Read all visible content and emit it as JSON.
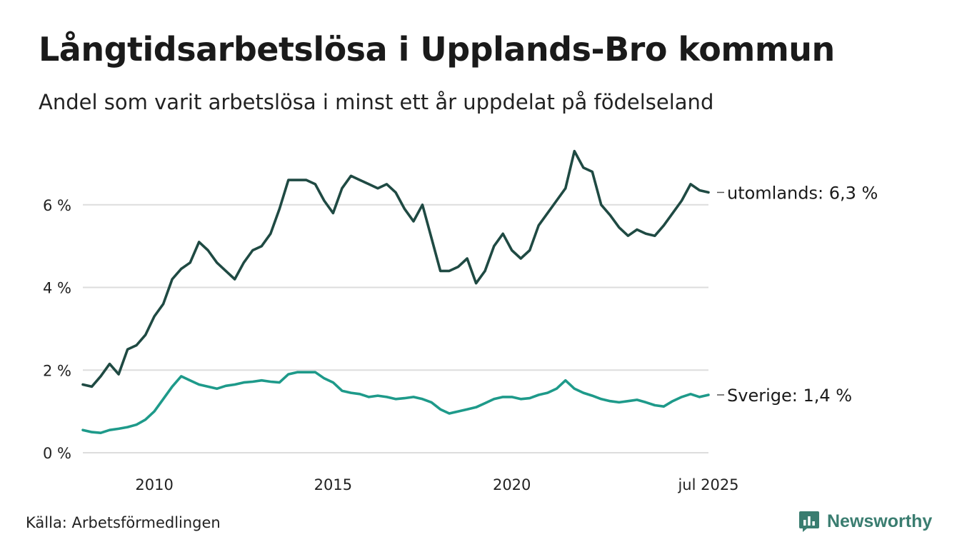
{
  "title": "Långtidsarbetslösa i Upplands-Bro kommun",
  "subtitle": "Andel som varit arbetslösa i minst ett år uppdelat på födelseland",
  "source": "Källa: Arbetsförmedlingen",
  "brand": {
    "name": "Newsworthy",
    "icon": "newsworthy-logo-icon",
    "color": "#3a7d70"
  },
  "chart_data": {
    "type": "line",
    "x_start": "2008-01",
    "x_end": "2025-07",
    "ylim": [
      0,
      7.5
    ],
    "y_ticks": [
      {
        "value": 0,
        "label": "0 %"
      },
      {
        "value": 2,
        "label": "2 %"
      },
      {
        "value": 4,
        "label": "4 %"
      },
      {
        "value": 6,
        "label": "6 %"
      }
    ],
    "x_ticks": [
      {
        "value": "2010-01",
        "label": "2010"
      },
      {
        "value": "2015-01",
        "label": "2015"
      },
      {
        "value": "2020-01",
        "label": "2020"
      },
      {
        "value": "2025-07",
        "label": "jul 2025"
      }
    ],
    "grid": true,
    "legend": "end-labels",
    "series": [
      {
        "name": "utomlands",
        "end_label": "utomlands: 6,3 %",
        "color": "#1f4a43",
        "points": [
          [
            "2008-01",
            1.65
          ],
          [
            "2008-04",
            1.6
          ],
          [
            "2008-07",
            1.85
          ],
          [
            "2008-10",
            2.15
          ],
          [
            "2009-01",
            1.9
          ],
          [
            "2009-04",
            2.5
          ],
          [
            "2009-07",
            2.6
          ],
          [
            "2009-10",
            2.85
          ],
          [
            "2010-01",
            3.3
          ],
          [
            "2010-04",
            3.6
          ],
          [
            "2010-07",
            4.2
          ],
          [
            "2010-10",
            4.45
          ],
          [
            "2011-01",
            4.6
          ],
          [
            "2011-04",
            5.1
          ],
          [
            "2011-07",
            4.9
          ],
          [
            "2011-10",
            4.6
          ],
          [
            "2012-01",
            4.4
          ],
          [
            "2012-04",
            4.2
          ],
          [
            "2012-07",
            4.6
          ],
          [
            "2012-10",
            4.9
          ],
          [
            "2013-01",
            5.0
          ],
          [
            "2013-04",
            5.3
          ],
          [
            "2013-07",
            5.9
          ],
          [
            "2013-10",
            6.6
          ],
          [
            "2014-01",
            6.6
          ],
          [
            "2014-04",
            6.6
          ],
          [
            "2014-07",
            6.5
          ],
          [
            "2014-10",
            6.1
          ],
          [
            "2015-01",
            5.8
          ],
          [
            "2015-04",
            6.4
          ],
          [
            "2015-07",
            6.7
          ],
          [
            "2015-10",
            6.6
          ],
          [
            "2016-01",
            6.5
          ],
          [
            "2016-04",
            6.4
          ],
          [
            "2016-07",
            6.5
          ],
          [
            "2016-10",
            6.3
          ],
          [
            "2017-01",
            5.9
          ],
          [
            "2017-04",
            5.6
          ],
          [
            "2017-07",
            6.0
          ],
          [
            "2017-10",
            5.2
          ],
          [
            "2018-01",
            4.4
          ],
          [
            "2018-04",
            4.4
          ],
          [
            "2018-07",
            4.5
          ],
          [
            "2018-10",
            4.7
          ],
          [
            "2019-01",
            4.1
          ],
          [
            "2019-04",
            4.4
          ],
          [
            "2019-07",
            5.0
          ],
          [
            "2019-10",
            5.3
          ],
          [
            "2020-01",
            4.9
          ],
          [
            "2020-04",
            4.7
          ],
          [
            "2020-07",
            4.9
          ],
          [
            "2020-10",
            5.5
          ],
          [
            "2021-01",
            5.8
          ],
          [
            "2021-04",
            6.1
          ],
          [
            "2021-07",
            6.4
          ],
          [
            "2021-10",
            7.3
          ],
          [
            "2022-01",
            6.9
          ],
          [
            "2022-04",
            6.8
          ],
          [
            "2022-07",
            6.0
          ],
          [
            "2022-10",
            5.75
          ],
          [
            "2023-01",
            5.45
          ],
          [
            "2023-04",
            5.25
          ],
          [
            "2023-07",
            5.4
          ],
          [
            "2023-10",
            5.3
          ],
          [
            "2024-01",
            5.25
          ],
          [
            "2024-04",
            5.5
          ],
          [
            "2024-07",
            5.8
          ],
          [
            "2024-10",
            6.1
          ],
          [
            "2025-01",
            6.5
          ],
          [
            "2025-04",
            6.35
          ],
          [
            "2025-07",
            6.3
          ]
        ]
      },
      {
        "name": "Sverige",
        "end_label": "Sverige: 1,4 %",
        "color": "#1e9a8a",
        "points": [
          [
            "2008-01",
            0.55
          ],
          [
            "2008-04",
            0.5
          ],
          [
            "2008-07",
            0.48
          ],
          [
            "2008-10",
            0.55
          ],
          [
            "2009-01",
            0.58
          ],
          [
            "2009-04",
            0.62
          ],
          [
            "2009-07",
            0.68
          ],
          [
            "2009-10",
            0.8
          ],
          [
            "2010-01",
            1.0
          ],
          [
            "2010-04",
            1.3
          ],
          [
            "2010-07",
            1.6
          ],
          [
            "2010-10",
            1.85
          ],
          [
            "2011-01",
            1.75
          ],
          [
            "2011-04",
            1.65
          ],
          [
            "2011-07",
            1.6
          ],
          [
            "2011-10",
            1.55
          ],
          [
            "2012-01",
            1.62
          ],
          [
            "2012-04",
            1.65
          ],
          [
            "2012-07",
            1.7
          ],
          [
            "2012-10",
            1.72
          ],
          [
            "2013-01",
            1.75
          ],
          [
            "2013-04",
            1.72
          ],
          [
            "2013-07",
            1.7
          ],
          [
            "2013-10",
            1.9
          ],
          [
            "2014-01",
            1.95
          ],
          [
            "2014-04",
            1.95
          ],
          [
            "2014-07",
            1.95
          ],
          [
            "2014-10",
            1.8
          ],
          [
            "2015-01",
            1.7
          ],
          [
            "2015-04",
            1.5
          ],
          [
            "2015-07",
            1.45
          ],
          [
            "2015-10",
            1.42
          ],
          [
            "2016-01",
            1.35
          ],
          [
            "2016-04",
            1.38
          ],
          [
            "2016-07",
            1.35
          ],
          [
            "2016-10",
            1.3
          ],
          [
            "2017-01",
            1.32
          ],
          [
            "2017-04",
            1.35
          ],
          [
            "2017-07",
            1.3
          ],
          [
            "2017-10",
            1.22
          ],
          [
            "2018-01",
            1.05
          ],
          [
            "2018-04",
            0.95
          ],
          [
            "2018-07",
            1.0
          ],
          [
            "2018-10",
            1.05
          ],
          [
            "2019-01",
            1.1
          ],
          [
            "2019-04",
            1.2
          ],
          [
            "2019-07",
            1.3
          ],
          [
            "2019-10",
            1.35
          ],
          [
            "2020-01",
            1.35
          ],
          [
            "2020-04",
            1.3
          ],
          [
            "2020-07",
            1.32
          ],
          [
            "2020-10",
            1.4
          ],
          [
            "2021-01",
            1.45
          ],
          [
            "2021-04",
            1.55
          ],
          [
            "2021-07",
            1.75
          ],
          [
            "2021-10",
            1.55
          ],
          [
            "2022-01",
            1.45
          ],
          [
            "2022-04",
            1.38
          ],
          [
            "2022-07",
            1.3
          ],
          [
            "2022-10",
            1.25
          ],
          [
            "2023-01",
            1.22
          ],
          [
            "2023-04",
            1.25
          ],
          [
            "2023-07",
            1.28
          ],
          [
            "2023-10",
            1.22
          ],
          [
            "2024-01",
            1.15
          ],
          [
            "2024-04",
            1.12
          ],
          [
            "2024-07",
            1.25
          ],
          [
            "2024-10",
            1.35
          ],
          [
            "2025-01",
            1.42
          ],
          [
            "2025-04",
            1.35
          ],
          [
            "2025-07",
            1.4
          ]
        ]
      }
    ]
  }
}
